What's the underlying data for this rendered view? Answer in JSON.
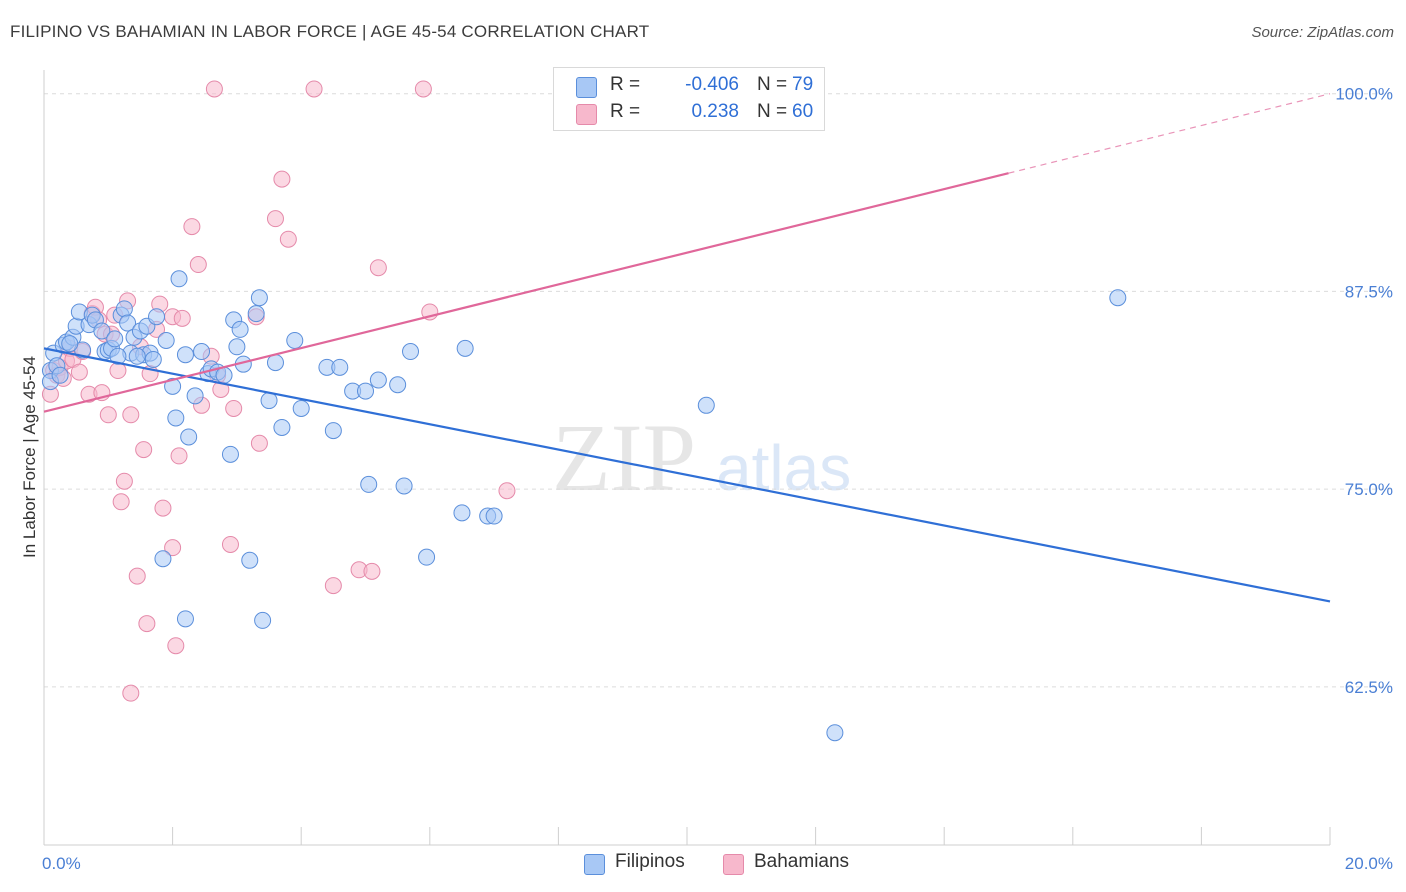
{
  "title": "FILIPINO VS BAHAMIAN IN LABOR FORCE | AGE 45-54 CORRELATION CHART",
  "source": "Source: ZipAtlas.com",
  "watermark": {
    "zip": "ZIP",
    "atlas": "atlas"
  },
  "legend_top": [
    {
      "swatch": "#a8c8f5",
      "r_label": "R =",
      "r_value": "-0.406",
      "n_label": "N =",
      "n_value": "79"
    },
    {
      "swatch": "#f7b8cc",
      "r_label": "R =",
      "r_value": "0.238",
      "n_label": "N =",
      "n_value": "60"
    }
  ],
  "legend_bottom": [
    {
      "label": "Filipinos",
      "swatch": "#a8c8f5"
    },
    {
      "label": "Bahamians",
      "swatch": "#f7b8cc"
    }
  ],
  "colors": {
    "blue_point_fill": "#a8c8f5",
    "blue_point_stroke": "#5b8fdb",
    "blue_line": "#2f6fd6",
    "pink_point_fill": "#f7b8cc",
    "pink_point_stroke": "#e58aaa",
    "pink_line": "#e0679a",
    "grid": "#dcdcdc",
    "tick_label": "#4a7fd4"
  },
  "chart_data": {
    "type": "scatter",
    "xlabel": "",
    "ylabel": "In Labor Force | Age 45-54",
    "xlim": [
      0,
      20
    ],
    "ylim": [
      52.5,
      101.5
    ],
    "x_tick_labels": [
      "0.0%",
      "20.0%"
    ],
    "y_ticks": [
      62.5,
      75.0,
      87.5,
      100.0
    ],
    "y_tick_labels": [
      "62.5%",
      "75.0%",
      "87.5%",
      "100.0%"
    ],
    "grid": "horizontal dashed",
    "legend_placement": "top-center",
    "series": [
      {
        "name": "Filipinos",
        "trend": {
          "x": [
            0,
            20
          ],
          "y": [
            83.9,
            67.9
          ],
          "dashed_from": null
        },
        "points": [
          [
            0.1,
            82.5
          ],
          [
            0.1,
            81.8
          ],
          [
            0.15,
            83.6
          ],
          [
            0.2,
            82.8
          ],
          [
            0.25,
            82.2
          ],
          [
            0.3,
            84.1
          ],
          [
            0.35,
            84.3
          ],
          [
            0.45,
            84.6
          ],
          [
            0.5,
            85.3
          ],
          [
            0.55,
            86.2
          ],
          [
            0.6,
            83.8
          ],
          [
            0.7,
            85.4
          ],
          [
            0.75,
            86.0
          ],
          [
            0.8,
            85.7
          ],
          [
            0.9,
            85.0
          ],
          [
            0.95,
            83.7
          ],
          [
            1.0,
            83.8
          ],
          [
            1.05,
            83.9
          ],
          [
            1.1,
            84.5
          ],
          [
            1.2,
            86.0
          ],
          [
            1.25,
            86.4
          ],
          [
            1.3,
            85.5
          ],
          [
            1.35,
            83.6
          ],
          [
            1.4,
            84.6
          ],
          [
            1.5,
            85.0
          ],
          [
            1.55,
            83.5
          ],
          [
            1.6,
            85.3
          ],
          [
            1.65,
            83.6
          ],
          [
            1.7,
            83.2
          ],
          [
            1.75,
            85.9
          ],
          [
            1.9,
            84.4
          ],
          [
            2.0,
            81.5
          ],
          [
            2.05,
            79.5
          ],
          [
            2.1,
            88.3
          ],
          [
            2.2,
            83.5
          ],
          [
            2.25,
            78.3
          ],
          [
            2.35,
            80.9
          ],
          [
            2.45,
            83.7
          ],
          [
            2.55,
            82.3
          ],
          [
            2.6,
            82.6
          ],
          [
            2.7,
            82.4
          ],
          [
            2.8,
            82.2
          ],
          [
            2.9,
            77.2
          ],
          [
            2.95,
            85.7
          ],
          [
            3.0,
            84.0
          ],
          [
            3.05,
            85.1
          ],
          [
            3.1,
            82.9
          ],
          [
            3.3,
            86.1
          ],
          [
            3.35,
            87.1
          ],
          [
            3.5,
            80.6
          ],
          [
            3.6,
            83.0
          ],
          [
            3.7,
            78.9
          ],
          [
            3.9,
            84.4
          ],
          [
            4.0,
            80.1
          ],
          [
            4.4,
            82.7
          ],
          [
            4.5,
            78.7
          ],
          [
            4.6,
            82.7
          ],
          [
            4.8,
            81.2
          ],
          [
            5.0,
            81.2
          ],
          [
            5.05,
            75.3
          ],
          [
            5.2,
            81.9
          ],
          [
            5.5,
            81.6
          ],
          [
            5.6,
            75.2
          ],
          [
            5.7,
            83.7
          ],
          [
            5.95,
            70.7
          ],
          [
            6.5,
            73.5
          ],
          [
            6.55,
            83.9
          ],
          [
            6.9,
            73.3
          ],
          [
            7.0,
            73.3
          ],
          [
            10.3,
            80.3
          ],
          [
            16.7,
            87.1
          ],
          [
            1.85,
            70.6
          ],
          [
            2.2,
            66.8
          ],
          [
            3.2,
            70.5
          ],
          [
            3.4,
            66.7
          ],
          [
            12.3,
            59.6
          ],
          [
            0.4,
            84.2
          ],
          [
            1.15,
            83.4
          ],
          [
            1.45,
            83.4
          ]
        ]
      },
      {
        "name": "Bahamians",
        "trend": {
          "x": [
            0,
            20
          ],
          "y": [
            79.9,
            100.0
          ],
          "dashed_from": 15.0
        },
        "points": [
          [
            0.1,
            81.0
          ],
          [
            0.15,
            82.5
          ],
          [
            0.2,
            82.2
          ],
          [
            0.25,
            82.7
          ],
          [
            0.3,
            82.0
          ],
          [
            0.35,
            83.1
          ],
          [
            0.4,
            83.9
          ],
          [
            0.45,
            83.2
          ],
          [
            0.55,
            82.4
          ],
          [
            0.6,
            83.7
          ],
          [
            0.7,
            81.0
          ],
          [
            0.75,
            86.1
          ],
          [
            0.8,
            86.5
          ],
          [
            0.85,
            85.7
          ],
          [
            0.9,
            81.1
          ],
          [
            0.95,
            84.8
          ],
          [
            1.0,
            79.7
          ],
          [
            1.05,
            84.8
          ],
          [
            1.1,
            86.0
          ],
          [
            1.15,
            82.5
          ],
          [
            1.2,
            74.2
          ],
          [
            1.25,
            75.5
          ],
          [
            1.3,
            86.9
          ],
          [
            1.35,
            79.7
          ],
          [
            1.45,
            69.5
          ],
          [
            1.5,
            84.0
          ],
          [
            1.55,
            77.5
          ],
          [
            1.6,
            66.5
          ],
          [
            1.65,
            82.3
          ],
          [
            1.75,
            85.1
          ],
          [
            1.8,
            86.7
          ],
          [
            1.85,
            73.8
          ],
          [
            2.0,
            85.9
          ],
          [
            2.0,
            71.3
          ],
          [
            2.05,
            65.1
          ],
          [
            2.1,
            77.1
          ],
          [
            2.15,
            85.8
          ],
          [
            2.3,
            91.6
          ],
          [
            2.4,
            89.2
          ],
          [
            2.45,
            80.3
          ],
          [
            2.6,
            83.4
          ],
          [
            2.7,
            82.2
          ],
          [
            2.75,
            81.3
          ],
          [
            2.9,
            71.5
          ],
          [
            2.95,
            80.1
          ],
          [
            3.3,
            85.9
          ],
          [
            3.35,
            77.9
          ],
          [
            3.6,
            92.1
          ],
          [
            3.7,
            94.6
          ],
          [
            3.8,
            90.8
          ],
          [
            4.5,
            68.9
          ],
          [
            4.9,
            69.9
          ],
          [
            5.1,
            69.8
          ],
          [
            5.2,
            89.0
          ],
          [
            6.0,
            86.2
          ],
          [
            7.2,
            74.9
          ],
          [
            1.35,
            62.1
          ],
          [
            2.65,
            100.3
          ],
          [
            4.2,
            100.3
          ],
          [
            5.9,
            100.3
          ]
        ]
      }
    ]
  }
}
